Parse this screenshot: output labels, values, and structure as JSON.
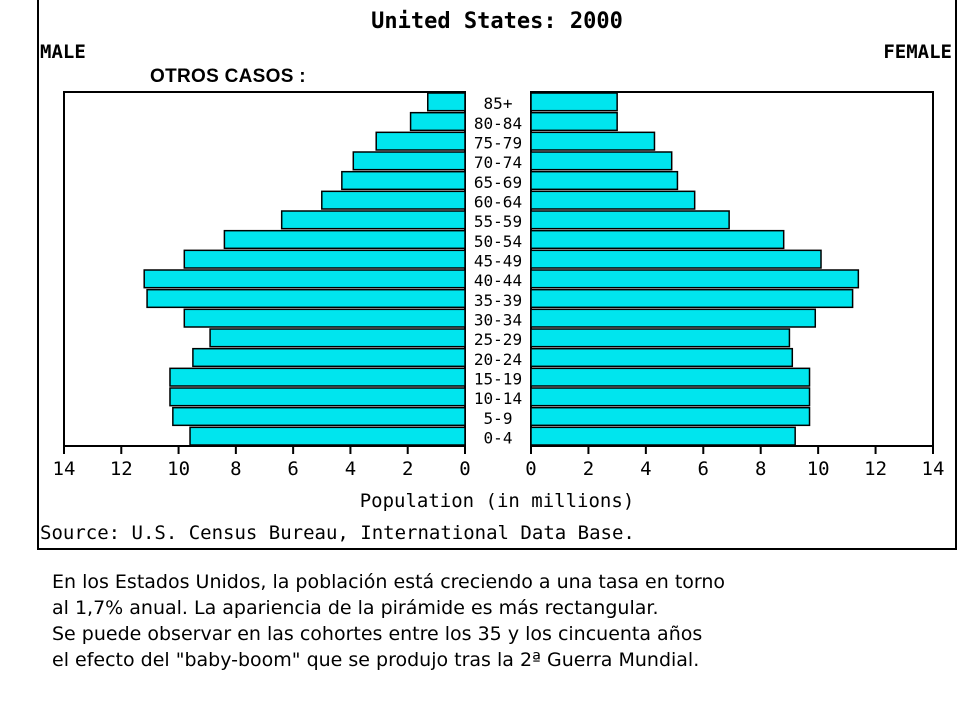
{
  "overlay_label": "OTROS CASOS :",
  "caption": {
    "lines": [
      "En los Estados Unidos, la población está creciendo a una tasa en torno",
      "al 1,7% anual. La apariencia de la pirámide es más rectangular.",
      "Se puede observar en las cohortes entre los 35 y los cincuenta años",
      "el efecto del \"baby-boom\" que se produjo tras la 2ª Guerra Mundial."
    ]
  },
  "colors": {
    "bar": "#00e5ee",
    "bar_edge": "#000000",
    "axis": "#000000"
  },
  "chart_data": {
    "type": "bar",
    "title": "United States: 2000",
    "left_label": "MALE",
    "right_label": "FEMALE",
    "xlabel": "Population (in millions)",
    "source": "Source: U.S. Census Bureau, International Data Base.",
    "xlim": [
      0,
      14
    ],
    "ticks": [
      "14",
      "12",
      "10",
      "8",
      "6",
      "4",
      "2",
      "0",
      "0",
      "2",
      "4",
      "6",
      "8",
      "10",
      "12",
      "14"
    ],
    "categories": [
      "85+",
      "80-84",
      "75-79",
      "70-74",
      "65-69",
      "60-64",
      "55-59",
      "50-54",
      "45-49",
      "40-44",
      "35-39",
      "30-34",
      "25-29",
      "20-24",
      "15-19",
      "10-14",
      "5-9",
      "0-4"
    ],
    "series": [
      {
        "name": "MALE",
        "values": [
          1.3,
          1.9,
          3.1,
          3.9,
          4.3,
          5.0,
          6.4,
          8.4,
          9.8,
          11.2,
          11.1,
          9.8,
          8.9,
          9.5,
          10.3,
          10.3,
          10.2,
          9.6
        ]
      },
      {
        "name": "FEMALE",
        "values": [
          3.0,
          3.0,
          4.3,
          4.9,
          5.1,
          5.7,
          6.9,
          8.8,
          10.1,
          11.4,
          11.2,
          9.9,
          9.0,
          9.1,
          9.7,
          9.7,
          9.7,
          9.2
        ]
      }
    ]
  }
}
